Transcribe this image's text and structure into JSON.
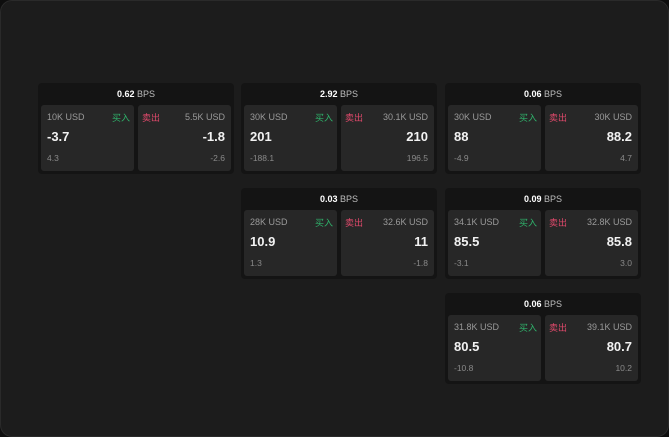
{
  "colors": {
    "buy": "#2fb36b",
    "sell": "#e0496b"
  },
  "unit": "BPS",
  "buy_label": "买入",
  "sell_label": "卖出",
  "cards": [
    {
      "row": 1,
      "col": 1,
      "bps": "0.62",
      "buy": {
        "size": "10K USD",
        "price": "-3.7",
        "change": "4.3"
      },
      "sell": {
        "size": "5.5K USD",
        "price": "-1.8",
        "change": "-2.6"
      }
    },
    {
      "row": 1,
      "col": 2,
      "bps": "2.92",
      "buy": {
        "size": "30K USD",
        "price": "201",
        "change": "-188.1"
      },
      "sell": {
        "size": "30.1K USD",
        "price": "210",
        "change": "196.5"
      }
    },
    {
      "row": 1,
      "col": 3,
      "bps": "0.06",
      "buy": {
        "size": "30K USD",
        "price": "88",
        "change": "-4.9"
      },
      "sell": {
        "size": "30K USD",
        "price": "88.2",
        "change": "4.7"
      }
    },
    {
      "row": 2,
      "col": 2,
      "bps": "0.03",
      "buy": {
        "size": "28K USD",
        "price": "10.9",
        "change": "1.3"
      },
      "sell": {
        "size": "32.6K USD",
        "price": "11",
        "change": "-1.8"
      }
    },
    {
      "row": 2,
      "col": 3,
      "bps": "0.09",
      "buy": {
        "size": "34.1K USD",
        "price": "85.5",
        "change": "-3.1"
      },
      "sell": {
        "size": "32.8K USD",
        "price": "85.8",
        "change": "3.0"
      }
    },
    {
      "row": 3,
      "col": 3,
      "bps": "0.06",
      "buy": {
        "size": "31.8K USD",
        "price": "80.5",
        "change": "-10.8"
      },
      "sell": {
        "size": "39.1K USD",
        "price": "80.7",
        "change": "10.2"
      }
    }
  ]
}
